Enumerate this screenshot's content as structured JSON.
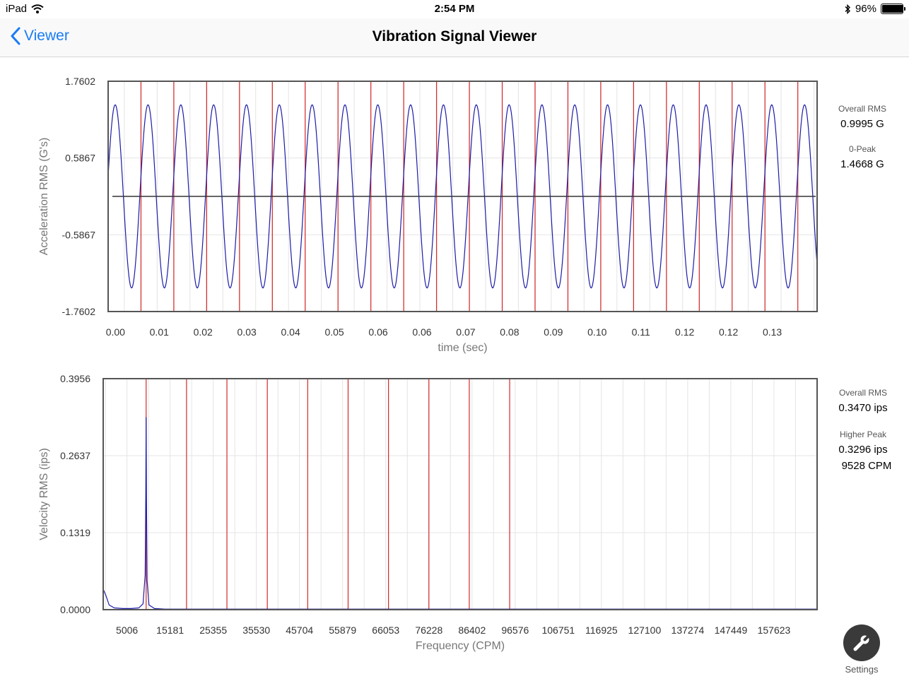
{
  "status_bar": {
    "device": "iPad",
    "time": "2:54 PM",
    "battery": "96%",
    "battery_level": 0.96
  },
  "nav": {
    "back_label": "Viewer",
    "title": "Vibration Signal Viewer"
  },
  "colors": {
    "signal": "#1c1ca8",
    "marker": "#d62828",
    "grid": "#e4e4e4",
    "axis": "#555555",
    "accent": "#1a7cf5"
  },
  "icons": {
    "back": "chevron-left-icon",
    "wifi": "wifi-icon",
    "bluetooth": "bluetooth-icon",
    "battery": "battery-icon",
    "settings": "wrench-icon"
  },
  "waveform_stats": {
    "overall_rms_label": "Overall RMS",
    "overall_rms_value": "0.9995 G",
    "peak_label": "0-Peak",
    "peak_value": "1.4668 G"
  },
  "spectrum_stats": {
    "overall_rms_label": "Overall RMS",
    "overall_rms_value": "0.3470 ips",
    "higher_peak_label": "Higher Peak",
    "higher_peak_value": "0.3296 ips",
    "higher_peak_freq": "9528 CPM"
  },
  "settings": {
    "label": "Settings"
  },
  "chart_data": [
    {
      "type": "line",
      "title": "",
      "xlabel": "time (sec)",
      "ylabel": "Acceleration RMS (G's)",
      "x_tick_labels": [
        "0.00",
        "0.01",
        "0.02",
        "0.03",
        "0.04",
        "0.05",
        "0.06",
        "0.06",
        "0.07",
        "0.08",
        "0.09",
        "0.10",
        "0.11",
        "0.12",
        "0.12",
        "0.13"
      ],
      "y_tick_labels": [
        "1.7602",
        "0.5867",
        "-0.5867",
        "-1.7602"
      ],
      "ylim": [
        -1.7602,
        1.7602
      ],
      "xlim": [
        -0.0014,
        0.1346
      ],
      "series": [
        {
          "amplitude": 1.4,
          "frequency_hz": 158.8,
          "phase": 0.05
        }
      ],
      "cursor_lines_x": [
        0.0049,
        0.0112,
        0.0175,
        0.0238,
        0.0301,
        0.0364,
        0.0427,
        0.049,
        0.0553,
        0.0616,
        0.0679,
        0.0742,
        0.0805,
        0.0868,
        0.0931,
        0.0994,
        0.1057,
        0.112,
        0.1183,
        0.1246,
        0.1309
      ],
      "grid": true
    },
    {
      "type": "line",
      "title": "",
      "xlabel": "Frequency (CPM)",
      "ylabel": "Velocity RMS (ips)",
      "x_tick_labels": [
        "5006",
        "15181",
        "25355",
        "35530",
        "45704",
        "55879",
        "66053",
        "76228",
        "86402",
        "96576",
        "106751",
        "116925",
        "127100",
        "137274",
        "147449",
        "157623"
      ],
      "x_ticks": [
        5006,
        15181,
        25355,
        35530,
        45704,
        55879,
        66053,
        76228,
        86402,
        96576,
        106751,
        116925,
        127100,
        137274,
        147449,
        157623
      ],
      "y_tick_labels": [
        "0.3956",
        "0.2637",
        "0.1319",
        "0.0000"
      ],
      "ylim": [
        0,
        0.3956
      ],
      "xlim": [
        -600,
        167800
      ],
      "series": [
        {
          "points": [
            [
              -600,
              0.035
            ],
            [
              0,
              0.025
            ],
            [
              800,
              0.008
            ],
            [
              2000,
              0.003
            ],
            [
              4000,
              0.002
            ],
            [
              6000,
              0.002
            ],
            [
              7800,
              0.003
            ],
            [
              8800,
              0.01
            ],
            [
              9300,
              0.06
            ],
            [
              9450,
              0.2
            ],
            [
              9528,
              0.3296
            ],
            [
              9600,
              0.2
            ],
            [
              9750,
              0.05
            ],
            [
              10200,
              0.008
            ],
            [
              11500,
              0.002
            ],
            [
              14000,
              0.001
            ],
            [
              167800,
              0.001
            ]
          ]
        }
      ],
      "cursor_lines_x": [
        9528,
        19056,
        28584,
        38112,
        47640,
        57168,
        66696,
        76224,
        85752,
        95280
      ],
      "grid": true
    }
  ]
}
